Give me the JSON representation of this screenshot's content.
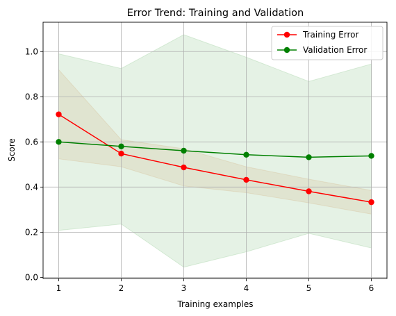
{
  "chart_data": {
    "type": "line",
    "title": "Error Trend: Training and Validation",
    "xlabel": "Training examples",
    "ylabel": "Score",
    "x": [
      1,
      2,
      3,
      4,
      5,
      6
    ],
    "xlim": [
      0.75,
      6.25
    ],
    "ylim": [
      -0.005,
      1.13
    ],
    "xticks": [
      "1",
      "2",
      "3",
      "4",
      "5",
      "6"
    ],
    "yticks": [
      "0.0",
      "0.2",
      "0.4",
      "0.6",
      "0.8",
      "1.0"
    ],
    "grid": true,
    "legend_position": "top-right",
    "series": [
      {
        "name": "Training Error",
        "color": "#ff0000",
        "values": [
          0.722,
          0.548,
          0.487,
          0.432,
          0.381,
          0.333
        ],
        "band_upper": [
          0.92,
          0.61,
          0.57,
          0.49,
          0.435,
          0.385
        ],
        "band_lower": [
          0.525,
          0.49,
          0.405,
          0.375,
          0.33,
          0.28
        ],
        "band_color": "#d2691e"
      },
      {
        "name": "Validation Error",
        "color": "#008000",
        "values": [
          0.6,
          0.58,
          0.561,
          0.543,
          0.532,
          0.538
        ],
        "band_upper": [
          0.99,
          0.925,
          1.075,
          0.975,
          0.868,
          0.945
        ],
        "band_lower": [
          0.208,
          0.236,
          0.045,
          0.113,
          0.195,
          0.13
        ],
        "band_color": "#008000"
      }
    ]
  }
}
